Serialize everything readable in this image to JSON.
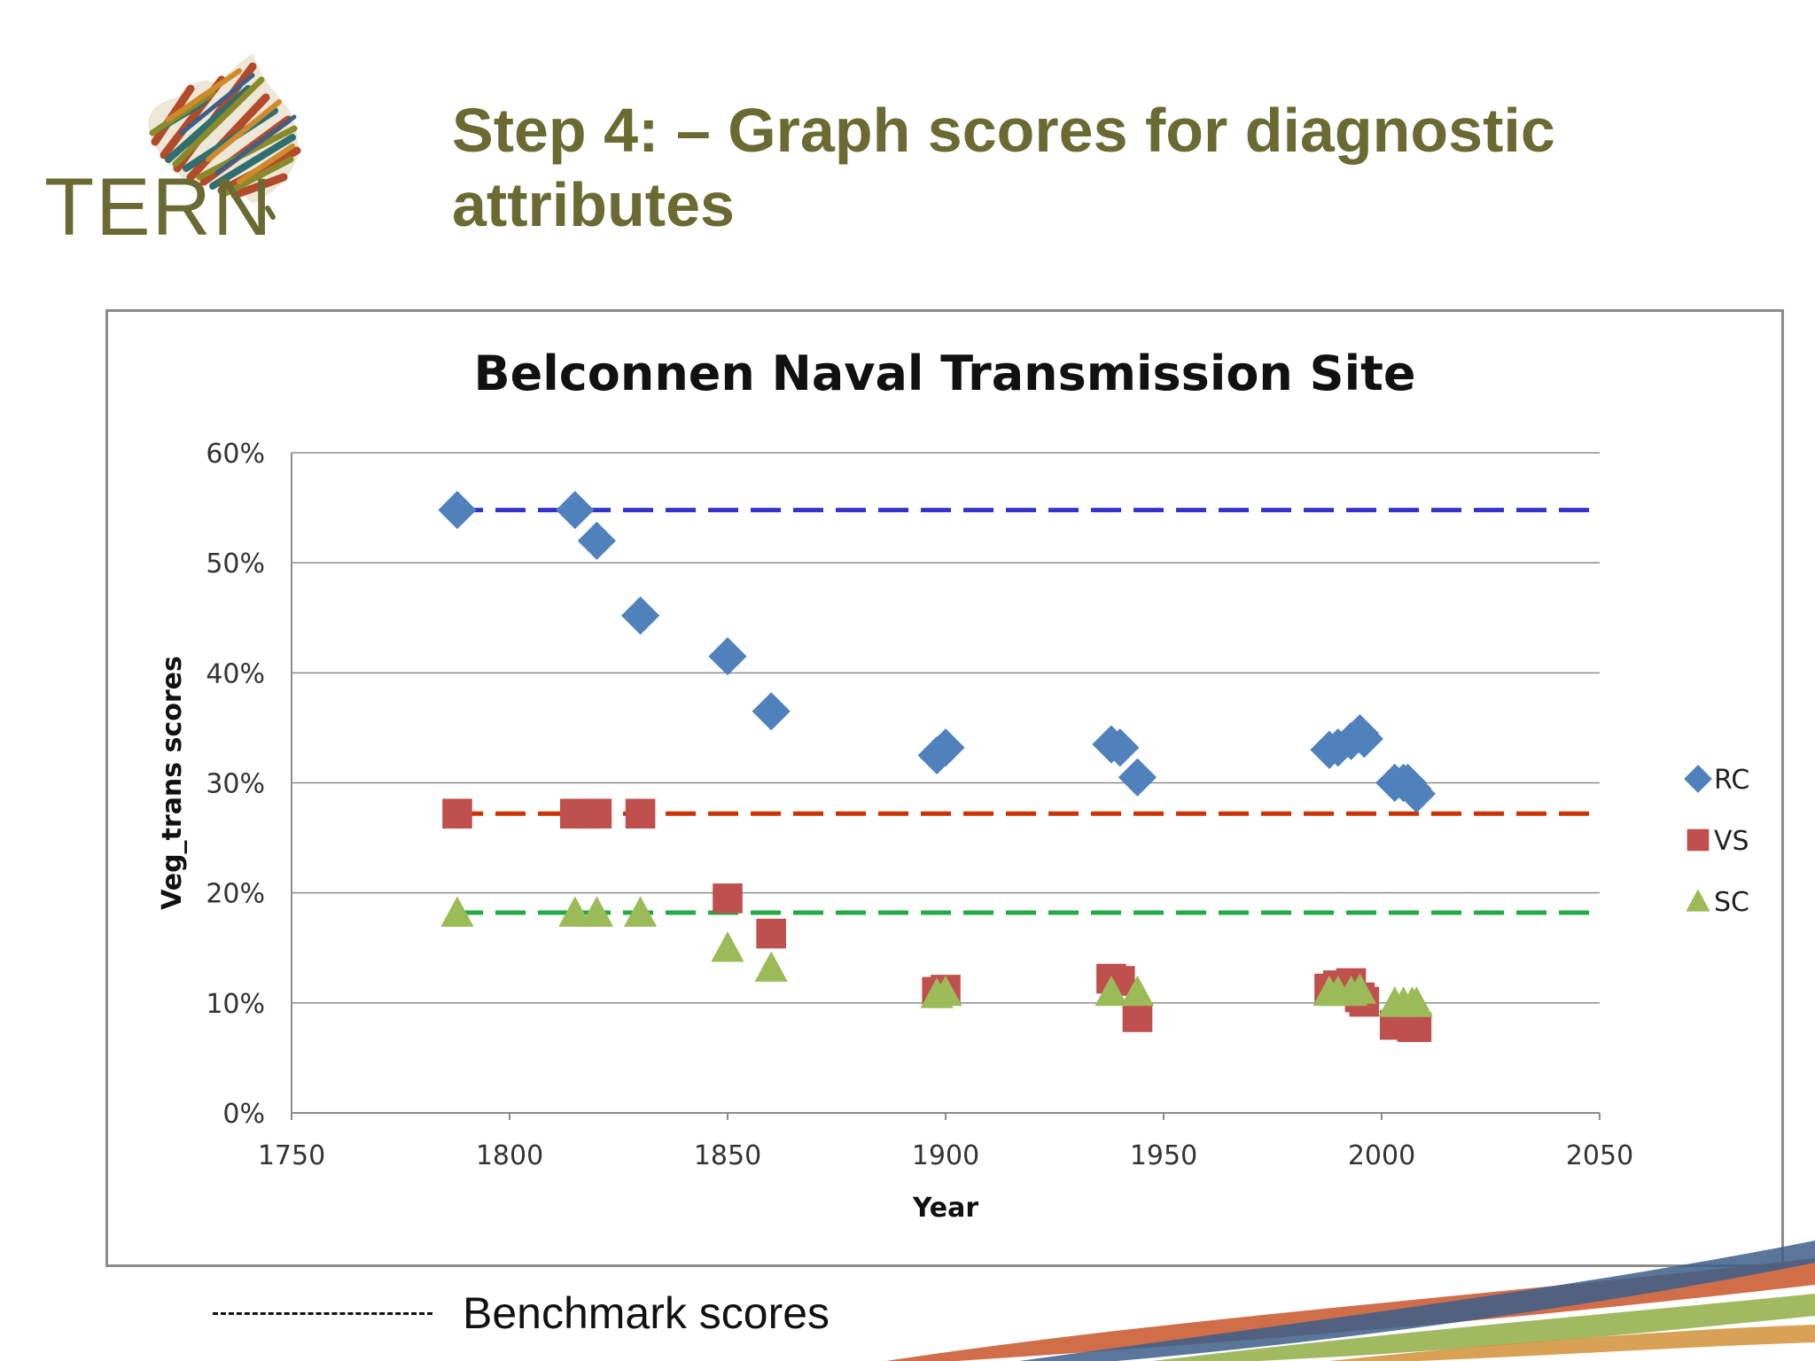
{
  "slide": {
    "title": "Step 4: – Graph scores for diagnostic attributes",
    "logo_text": "TERN",
    "benchmark_note": "Benchmark scores"
  },
  "colors": {
    "title": "#6b6a33",
    "rc": "#4f81bd",
    "vs": "#c0504d",
    "sc": "#9bbb59",
    "bench_rc": "#3333cc",
    "bench_vs": "#cc3300",
    "bench_sc": "#22aa44"
  },
  "chart_data": {
    "type": "scatter",
    "title": "Belconnen Naval Transmission Site",
    "xlabel": "Year",
    "ylabel": "Veg_trans scores",
    "xlim": [
      1750,
      2050
    ],
    "ylim": [
      0,
      60
    ],
    "xticks": [
      1750,
      1800,
      1850,
      1900,
      1950,
      2000,
      2050
    ],
    "yticks": [
      0,
      10,
      20,
      30,
      40,
      50,
      60
    ],
    "ytick_labels": [
      "0%",
      "10%",
      "20%",
      "30%",
      "40%",
      "50%",
      "60%"
    ],
    "grid": "horizontal",
    "legend": "right",
    "series": [
      {
        "name": "RC",
        "marker": "diamond",
        "x": [
          1788,
          1815,
          1820,
          1830,
          1850,
          1860,
          1898,
          1900,
          1938,
          1940,
          1944,
          1988,
          1990,
          1993,
          1995,
          1996,
          2003,
          2005,
          2006,
          2007,
          2008
        ],
        "y": [
          54.8,
          54.8,
          52.0,
          45.2,
          41.5,
          36.5,
          32.5,
          33.2,
          33.5,
          33.2,
          30.5,
          33.0,
          33.2,
          33.8,
          34.5,
          34.0,
          30.0,
          30.0,
          30.0,
          29.5,
          29.0
        ]
      },
      {
        "name": "VS",
        "marker": "square",
        "x": [
          1788,
          1815,
          1818,
          1820,
          1830,
          1850,
          1860,
          1898,
          1900,
          1938,
          1940,
          1944,
          1988,
          1990,
          1993,
          1995,
          1996,
          2003,
          2005,
          2007,
          2008
        ],
        "y": [
          27.2,
          27.2,
          27.2,
          27.2,
          27.2,
          19.5,
          16.3,
          11.0,
          11.2,
          12.2,
          12.0,
          8.7,
          11.3,
          11.6,
          11.8,
          10.5,
          10.1,
          8.0,
          8.0,
          7.8,
          7.8
        ]
      },
      {
        "name": "SC",
        "marker": "triangle",
        "x": [
          1788,
          1815,
          1820,
          1830,
          1850,
          1860,
          1898,
          1900,
          1938,
          1944,
          1988,
          1990,
          1993,
          1995,
          2003,
          2005,
          2007,
          2008
        ],
        "y": [
          18.2,
          18.2,
          18.2,
          18.2,
          15.0,
          13.2,
          10.8,
          11.0,
          11.0,
          11.0,
          11.0,
          11.0,
          11.0,
          11.2,
          10.0,
          10.0,
          10.0,
          10.0
        ]
      }
    ],
    "benchmarks": [
      {
        "series": "RC",
        "y": 54.8,
        "from": 1787,
        "to": 2050
      },
      {
        "series": "VS",
        "y": 27.2,
        "from": 1787,
        "to": 2050
      },
      {
        "series": "SC",
        "y": 18.2,
        "from": 1787,
        "to": 2050
      }
    ]
  }
}
